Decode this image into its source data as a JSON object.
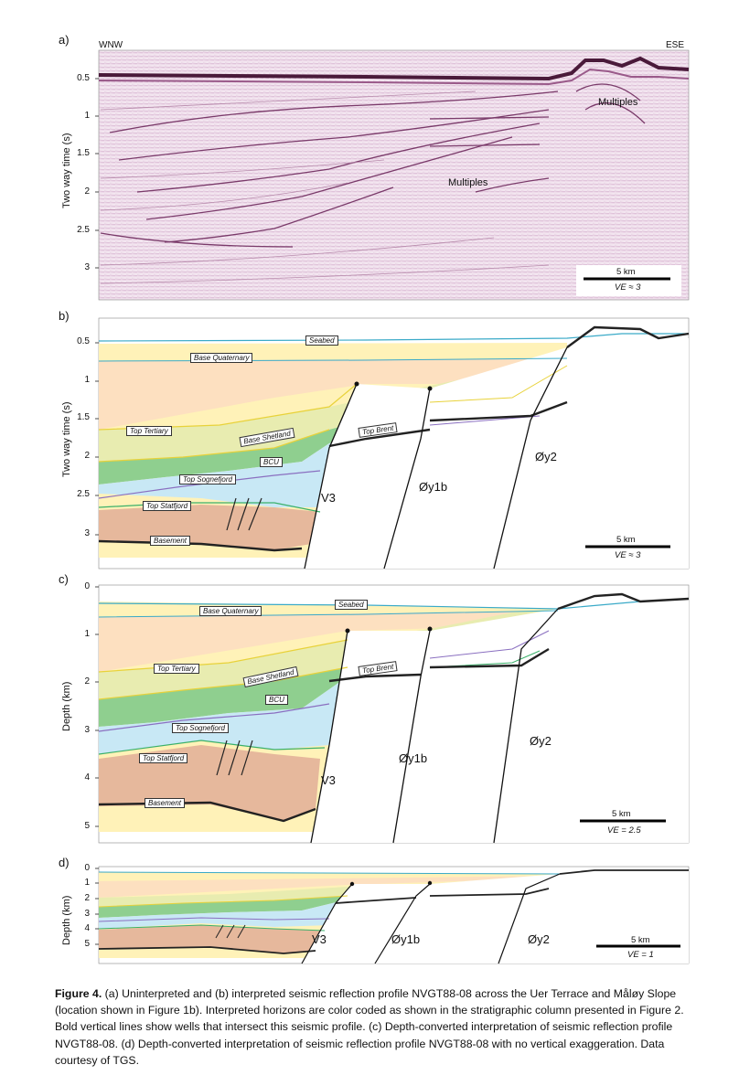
{
  "panel_a": {
    "letter": "a)",
    "left_label": "WNW",
    "right_label": "ESE",
    "ylabel": "Two way time (s)",
    "yticks": [
      "0.5",
      "1",
      "1.5",
      "2",
      "2.5",
      "3"
    ],
    "annotations": [
      "Multiples",
      "Multiples"
    ],
    "scale_label": "5 km",
    "ve_label": "VE ≈ 3"
  },
  "panel_b": {
    "letter": "b)",
    "ylabel": "Two way time (s)",
    "yticks": [
      "0.5",
      "1",
      "1.5",
      "2",
      "2.5",
      "3"
    ],
    "horizons": [
      "Seabed",
      "Base Quaternary",
      "Top Tertiary",
      "Base Shetland",
      "Top Brent",
      "BCU",
      "Top Sognefjord",
      "Top Statfjord",
      "Basement"
    ],
    "faults": [
      "V3",
      "Øy1b",
      "Øy2"
    ],
    "scale_label": "5 km",
    "ve_label": "VE ≈ 3"
  },
  "panel_c": {
    "letter": "c)",
    "ylabel": "Depth (km)",
    "yticks": [
      "0",
      "1",
      "2",
      "3",
      "4",
      "5"
    ],
    "horizons": [
      "Seabed",
      "Base Quaternary",
      "Top Tertiary",
      "Base Shetland",
      "Top Brent",
      "BCU",
      "Top Sognefjord",
      "Top Statfjord",
      "Basement"
    ],
    "faults": [
      "V3",
      "Øy1b",
      "Øy2"
    ],
    "scale_label": "5 km",
    "ve_label": "VE = 2.5"
  },
  "panel_d": {
    "letter": "d)",
    "ylabel": "Depth (km)",
    "yticks": [
      "0",
      "1",
      "2",
      "3",
      "4",
      "5"
    ],
    "faults": [
      "V3",
      "Øy1b",
      "Øy2"
    ],
    "scale_label": "5 km",
    "ve_label": "VE = 1"
  },
  "caption": {
    "label": "Figure 4.",
    "text": " (a) Uninterpreted and (b) interpreted seismic reflection profile NVGT88-08 across the Uer Terrace and Måløy Slope (location shown in Figure 1b). Interpreted horizons are color coded as shown in the stratigraphic column presented in Figure 2. Bold vertical lines show wells that intersect this seismic profile. (c) Depth-converted interpretation of seismic reflection profile NVGT88-08. (d) Depth-converted interpretation of seismic reflection profile NVGT88-08 with no vertical exaggeration. Data courtesy of TGS."
  },
  "colors": {
    "quaternary": "#fff2b8",
    "tertiary": "#fde0c0",
    "upper_tertiary": "#e8ecb0",
    "shetland": "#8fcf8f",
    "jurassic": "#c8e8f5",
    "triassic": "#e6b89c",
    "seabed": "#3aaac8",
    "top_tertiary": "#e8d23a",
    "bcu": "#8a6fc0",
    "statfjord": "#3ab06a"
  }
}
